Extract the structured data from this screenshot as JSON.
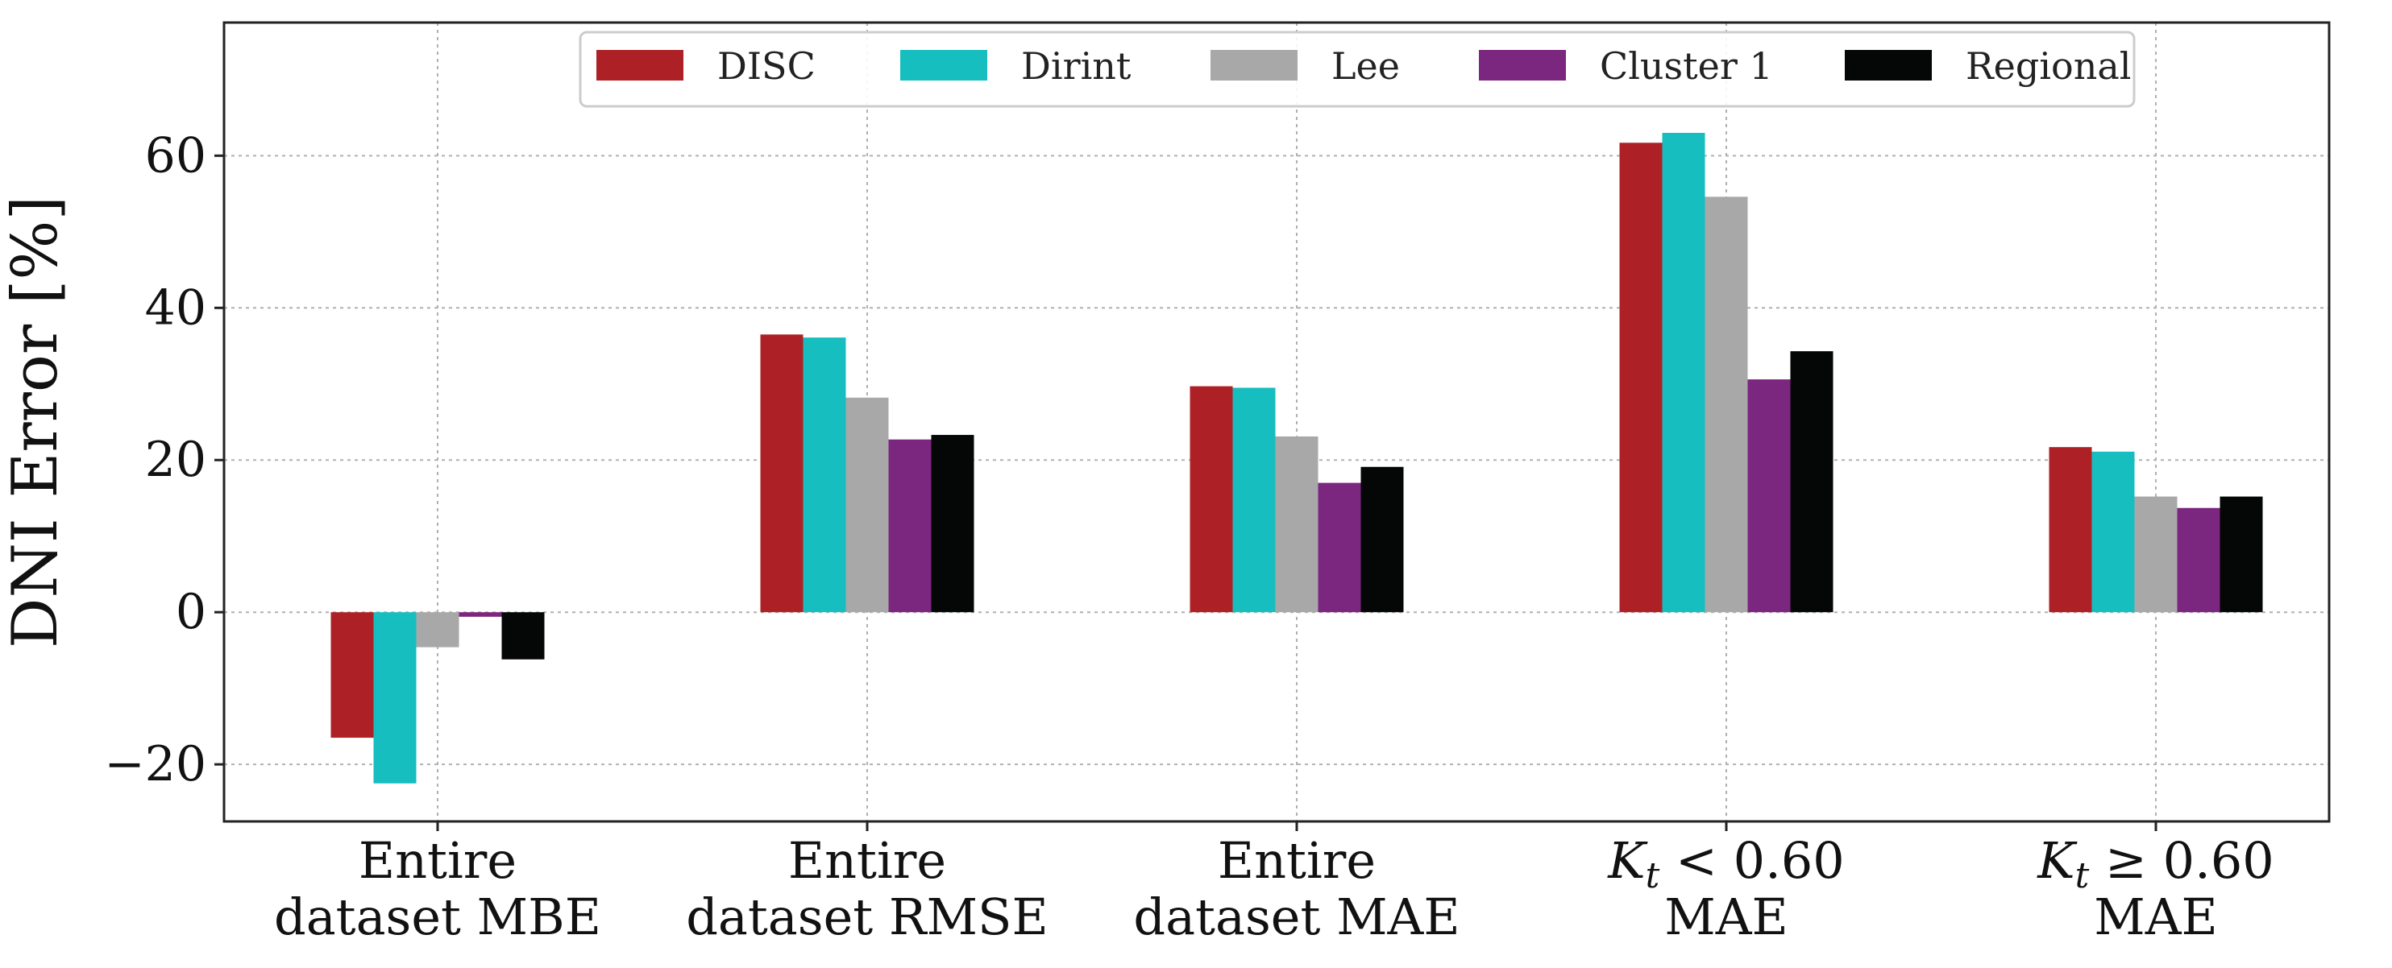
{
  "chart_data": {
    "type": "bar",
    "categories": [
      [
        "Entire",
        "dataset MBE"
      ],
      [
        "Entire",
        "dataset RMSE"
      ],
      [
        "Entire",
        "dataset MAE"
      ],
      [
        "K_t < 0.60",
        "MAE"
      ],
      [
        "K_t ≥ 0.60",
        "MAE"
      ]
    ],
    "series": [
      {
        "name": "DISC",
        "color": "#ad2126",
        "values": [
          -16.5,
          36.5,
          29.7,
          61.7,
          21.7
        ]
      },
      {
        "name": "Dirint",
        "color": "#17bebf",
        "values": [
          -22.5,
          36.1,
          29.5,
          63.0,
          21.1
        ]
      },
      {
        "name": "Lee",
        "color": "#a8a8a8",
        "values": [
          -4.6,
          28.2,
          23.1,
          54.6,
          15.2
        ]
      },
      {
        "name": "Cluster 1",
        "color": "#7b267f",
        "values": [
          -0.6,
          22.7,
          17.0,
          30.6,
          13.7
        ]
      },
      {
        "name": "Regional",
        "color": "#050707",
        "values": [
          -6.2,
          23.3,
          19.1,
          34.3,
          15.2
        ]
      }
    ],
    "ylabel": "DNI Error [%]",
    "ylim": [
      -27.5,
      77.5
    ],
    "yticks": [
      -20,
      0,
      20,
      40,
      60
    ],
    "ytick_labels": [
      "−20",
      "0",
      "20",
      "40",
      "60"
    ],
    "grid": true,
    "legend": "top-center"
  }
}
